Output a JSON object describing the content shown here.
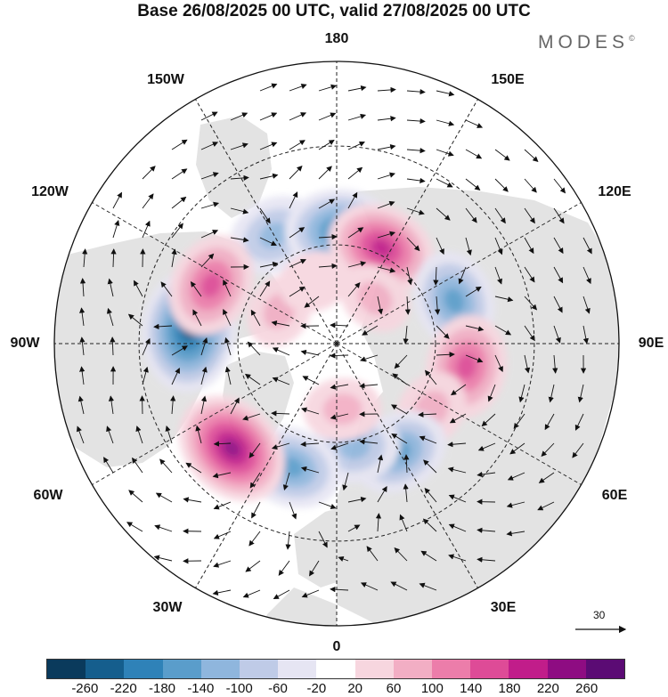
{
  "title": "Base 26/08/2025 00 UTC, valid 27/08/2025 00 UTC",
  "brand": "MODES",
  "brand_mark": "©",
  "lon_labels": {
    "top": "180",
    "bottom": "0",
    "left": "90W",
    "right": "90E",
    "nw_upper": "150W",
    "nw_lower": "120W",
    "ne_upper": "150E",
    "ne_lower": "120E",
    "sw_upper": "60W",
    "sw_lower": "30W",
    "se_upper": "60E",
    "se_lower": "30E"
  },
  "reference_vector": {
    "value": "30"
  },
  "colorbar": {
    "colors": [
      "#0a3a5c",
      "#155e8d",
      "#2f82b8",
      "#5a9dcb",
      "#8fb6dd",
      "#bfcbe7",
      "#e6e5f3",
      "#ffffff",
      "#f7d6df",
      "#f2aec4",
      "#ec7daa",
      "#de4b97",
      "#c11d8a",
      "#8e0c82",
      "#5b0b74"
    ],
    "ticks": [
      "-260",
      "-220",
      "-180",
      "-140",
      "-100",
      "-60",
      "-20",
      "20",
      "60",
      "100",
      "140",
      "180",
      "220",
      "260"
    ]
  },
  "anomaly_centers": [
    {
      "lon": -150,
      "lat": 52,
      "value": -130
    },
    {
      "lon": 178,
      "lat": 56,
      "value": -200
    },
    {
      "lon": 155,
      "lat": 58,
      "value": 190
    },
    {
      "lon": 140,
      "lat": 72,
      "value": 60
    },
    {
      "lon": 110,
      "lat": 52,
      "value": -160
    },
    {
      "lon": 80,
      "lat": 50,
      "value": 170
    },
    {
      "lon": 55,
      "lat": 55,
      "value": 80
    },
    {
      "lon": 30,
      "lat": 52,
      "value": -150
    },
    {
      "lon": 10,
      "lat": 58,
      "value": -120
    },
    {
      "lon": 5,
      "lat": 70,
      "value": 70
    },
    {
      "lon": -20,
      "lat": 50,
      "value": -160
    },
    {
      "lon": -45,
      "lat": 45,
      "value": 230
    },
    {
      "lon": -95,
      "lat": 45,
      "value": -250
    },
    {
      "lon": -115,
      "lat": 48,
      "value": 170
    },
    {
      "lon": -120,
      "lat": 70,
      "value": 60
    },
    {
      "lon": -160,
      "lat": 70,
      "value": 50
    }
  ]
}
